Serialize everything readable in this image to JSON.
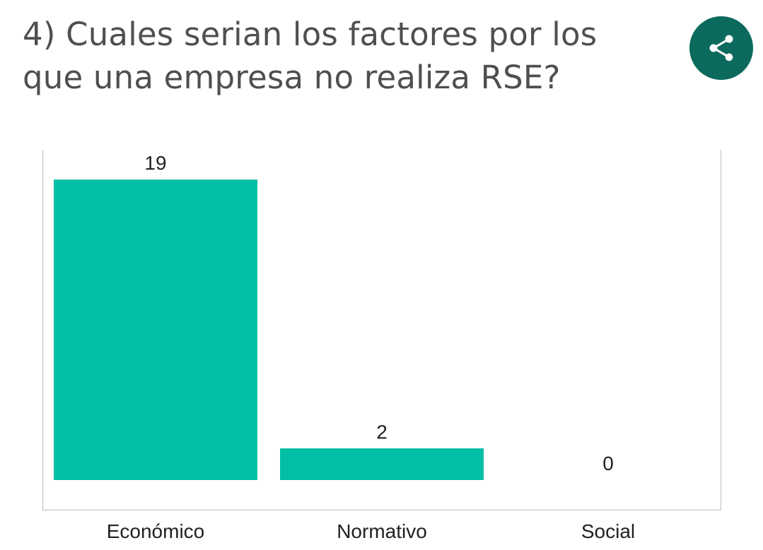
{
  "question": {
    "title": "4) Cuales serian los factores por los que una empresa no realiza RSE?"
  },
  "share_button": {
    "icon": "share-icon",
    "color": "#0b6a5c"
  },
  "colors": {
    "bar": "#00bfa5",
    "axis": "#bdbdbd",
    "text": "#212121",
    "title": "#4f4f4f"
  },
  "chart_data": {
    "type": "bar",
    "categories": [
      "Económico",
      "Normativo",
      "Social"
    ],
    "values": [
      19,
      2,
      0
    ],
    "title": "",
    "xlabel": "",
    "ylabel": "",
    "ylim": [
      0,
      19
    ],
    "grid": false,
    "data_labels": true
  }
}
